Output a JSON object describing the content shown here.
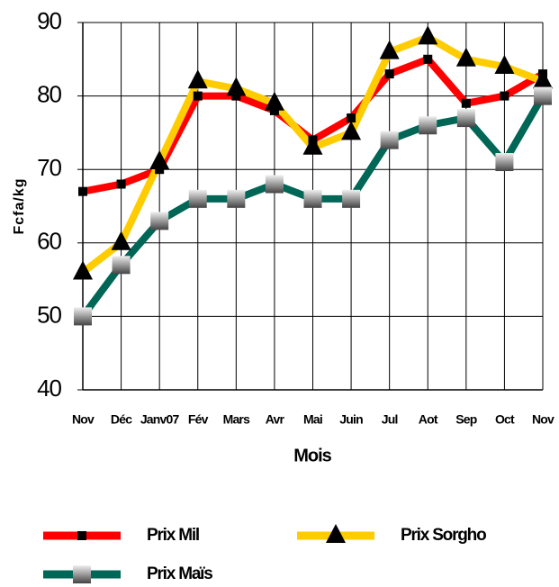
{
  "chart_data": {
    "type": "line",
    "x_label": "Mois",
    "y_label": "Fcfa/kg",
    "categories": [
      "Nov",
      "Déc",
      "Janv07",
      "Fév",
      "Mars",
      "Avr",
      "Mai",
      "Juin",
      "Jul",
      "Aot",
      "Sep",
      "Oct",
      "Nov"
    ],
    "series": [
      {
        "name": "Prix Mil",
        "color": "#ff0000",
        "marker": "square",
        "values": [
          67,
          68,
          70,
          80,
          80,
          78,
          74,
          77,
          83,
          85,
          79,
          80,
          83
        ]
      },
      {
        "name": "Prix Sorgho",
        "color": "#ffcc00",
        "marker": "triangle",
        "values": [
          56,
          60,
          71,
          82,
          81,
          79,
          73,
          75,
          86,
          88,
          85,
          84,
          82
        ]
      },
      {
        "name": "Prix Maïs",
        "color": "#006655",
        "marker": "gray-square",
        "values": [
          50,
          57,
          63,
          66,
          66,
          68,
          66,
          66,
          74,
          76,
          77,
          71,
          80
        ]
      }
    ],
    "ylim": [
      40,
      90
    ],
    "yticks": [
      40,
      50,
      60,
      70,
      80,
      90
    ],
    "grid": true,
    "legend": "bottom"
  }
}
